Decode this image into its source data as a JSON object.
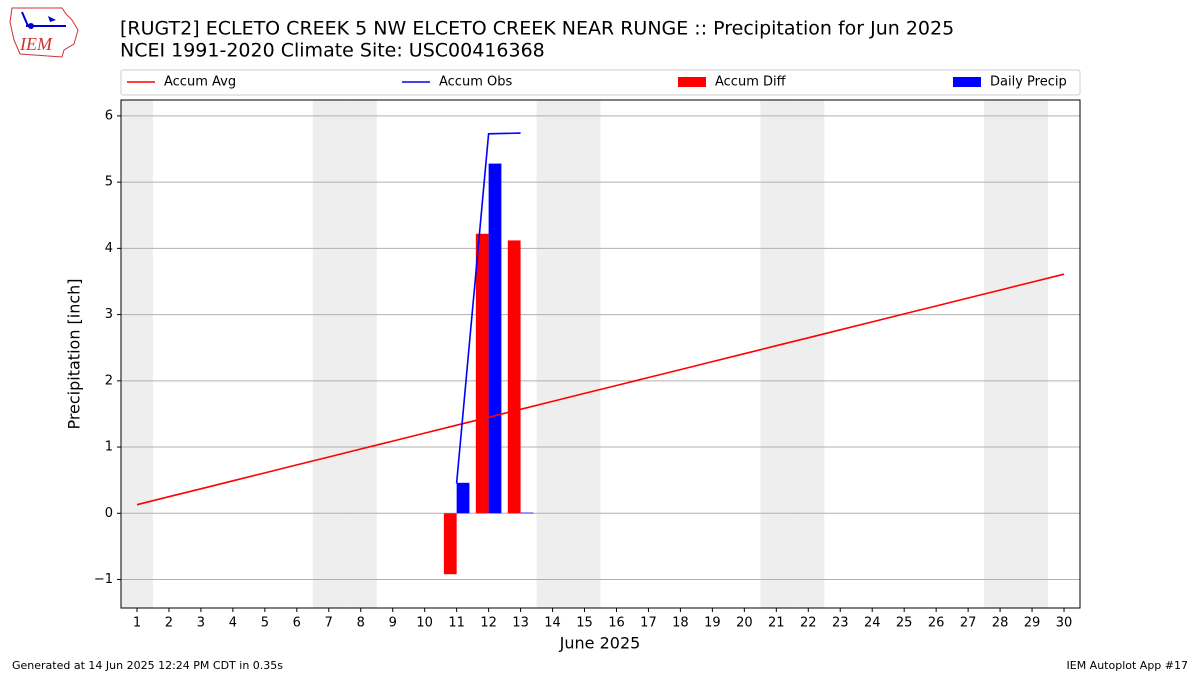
{
  "logo": "IEM",
  "footer_left": "Generated at 14 Jun 2025 12:24 PM CDT in 0.35s",
  "footer_right": "IEM Autoplot App #17",
  "chart_data": {
    "type": "combo",
    "title": "[RUGT2] ECLETO CREEK 5 NW ELCETO CREEK NEAR RUNGE :: Precipitation for Jun 2025",
    "subtitle": "NCEI 1991-2020 Climate Site: USC00416368",
    "x_label": "June 2025",
    "y_label": "Precipitation [inch]",
    "x": [
      1,
      2,
      3,
      4,
      5,
      6,
      7,
      8,
      9,
      10,
      11,
      12,
      13,
      14,
      15,
      16,
      17,
      18,
      19,
      20,
      21,
      22,
      23,
      24,
      25,
      26,
      27,
      28,
      29,
      30
    ],
    "xlim": [
      0.5,
      30.5
    ],
    "xticks": [
      1,
      2,
      3,
      4,
      5,
      6,
      7,
      8,
      9,
      10,
      11,
      12,
      13,
      14,
      15,
      16,
      17,
      18,
      19,
      20,
      21,
      22,
      23,
      24,
      25,
      26,
      27,
      28,
      29,
      30
    ],
    "ylim": [
      -1.43,
      6.24
    ],
    "yticks": [
      {
        "value": -1,
        "label": "−1"
      },
      0,
      1,
      2,
      3,
      4,
      5,
      6
    ],
    "grid": true,
    "shaded_x": [
      1,
      7,
      8,
      14,
      15,
      21,
      22,
      28,
      29
    ],
    "shade_color": "#eeeeee",
    "series": [
      {
        "name": "Accum Avg",
        "type": "line",
        "color": "#ff0000",
        "values": [
          0.13,
          0.25,
          0.37,
          0.49,
          0.61,
          0.73,
          0.85,
          0.97,
          1.09,
          1.21,
          1.33,
          1.45,
          1.57,
          1.69,
          1.81,
          1.93,
          2.05,
          2.17,
          2.29,
          2.41,
          2.53,
          2.65,
          2.77,
          2.89,
          3.01,
          3.13,
          3.25,
          3.37,
          3.49,
          3.61
        ]
      },
      {
        "name": "Accum Obs",
        "type": "line",
        "color": "#0000ff",
        "values": [
          null,
          null,
          null,
          null,
          null,
          null,
          null,
          null,
          null,
          null,
          0.45,
          5.73,
          5.74,
          null,
          null,
          null,
          null,
          null,
          null,
          null,
          null,
          null,
          null,
          null,
          null,
          null,
          null,
          null,
          null,
          null
        ]
      },
      {
        "name": "Accum Diff",
        "type": "bar",
        "color": "#ff0000",
        "values": [
          null,
          null,
          null,
          null,
          null,
          null,
          null,
          null,
          null,
          null,
          -0.92,
          4.22,
          4.12,
          null,
          null,
          null,
          null,
          null,
          null,
          null,
          null,
          null,
          null,
          null,
          null,
          null,
          null,
          null,
          null,
          null
        ]
      },
      {
        "name": "Daily Precip",
        "type": "bar",
        "color": "#0000ff",
        "values": [
          null,
          null,
          null,
          null,
          null,
          null,
          null,
          null,
          null,
          null,
          0.46,
          5.28,
          0.01,
          null,
          null,
          null,
          null,
          null,
          null,
          null,
          null,
          null,
          null,
          null,
          null,
          null,
          null,
          null,
          null,
          null
        ]
      }
    ]
  }
}
